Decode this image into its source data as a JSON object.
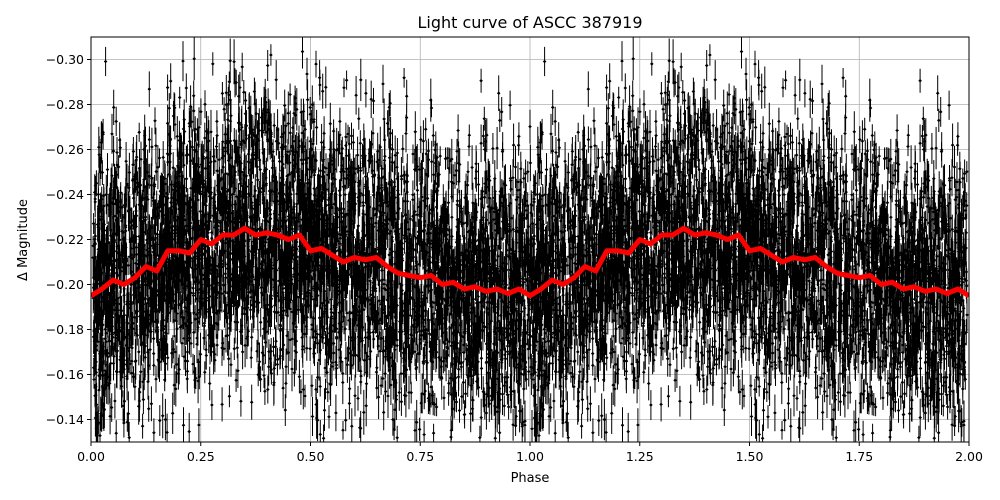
{
  "chart_data": {
    "type": "scatter",
    "title": "Light curve of ASCC 387919",
    "xlabel": "Phase",
    "ylabel": "Δ Magnitude",
    "xlim": [
      0,
      2
    ],
    "ylim": [
      -0.13,
      -0.31
    ],
    "y_inverted": true,
    "grid": true,
    "xticks": [
      "0.00",
      "0.25",
      "0.50",
      "0.75",
      "1.00",
      "1.25",
      "1.50",
      "1.75",
      "2.00"
    ],
    "xtick_values": [
      0,
      0.25,
      0.5,
      0.75,
      1.0,
      1.25,
      1.5,
      1.75,
      2.0
    ],
    "yticks": [
      "−0.30",
      "−0.28",
      "−0.26",
      "−0.24",
      "−0.22",
      "−0.20",
      "−0.18",
      "−0.16",
      "−0.14"
    ],
    "ytick_values": [
      -0.3,
      -0.28,
      -0.26,
      -0.24,
      -0.22,
      -0.2,
      -0.18,
      -0.16,
      -0.14
    ],
    "observations": {
      "style": "errorbar points",
      "color": "#000000",
      "scatter_sd": 0.03
    },
    "binned_curve": {
      "color": "#ff0000",
      "x": [
        0,
        0.025,
        0.05,
        0.075,
        0.1,
        0.125,
        0.15,
        0.175,
        0.2,
        0.225,
        0.25,
        0.275,
        0.3,
        0.325,
        0.35,
        0.375,
        0.4,
        0.425,
        0.45,
        0.475,
        0.5,
        0.525,
        0.55,
        0.575,
        0.6,
        0.625,
        0.65,
        0.675,
        0.7,
        0.725,
        0.75,
        0.775,
        0.8,
        0.825,
        0.85,
        0.875,
        0.9,
        0.925,
        0.95,
        0.975,
        1.0,
        1.025,
        1.05,
        1.075,
        1.1,
        1.125,
        1.15,
        1.175,
        1.2,
        1.225,
        1.25,
        1.275,
        1.3,
        1.325,
        1.35,
        1.375,
        1.4,
        1.425,
        1.45,
        1.475,
        1.5,
        1.525,
        1.55,
        1.575,
        1.6,
        1.625,
        1.65,
        1.675,
        1.7,
        1.725,
        1.75,
        1.775,
        1.8,
        1.825,
        1.85,
        1.875,
        1.9,
        1.925,
        1.95,
        1.975,
        2.0
      ],
      "y": [
        -0.195,
        -0.198,
        -0.202,
        -0.2,
        -0.203,
        -0.208,
        -0.206,
        -0.215,
        -0.215,
        -0.214,
        -0.22,
        -0.218,
        -0.222,
        -0.222,
        -0.225,
        -0.222,
        -0.223,
        -0.222,
        -0.22,
        -0.222,
        -0.215,
        -0.216,
        -0.213,
        -0.21,
        -0.212,
        -0.211,
        -0.212,
        -0.208,
        -0.205,
        -0.204,
        -0.203,
        -0.204,
        -0.2,
        -0.201,
        -0.198,
        -0.199,
        -0.197,
        -0.198,
        -0.196,
        -0.198,
        -0.195,
        -0.198,
        -0.202,
        -0.2,
        -0.203,
        -0.208,
        -0.206,
        -0.215,
        -0.215,
        -0.214,
        -0.22,
        -0.218,
        -0.222,
        -0.222,
        -0.225,
        -0.222,
        -0.223,
        -0.222,
        -0.22,
        -0.222,
        -0.215,
        -0.216,
        -0.213,
        -0.21,
        -0.212,
        -0.211,
        -0.212,
        -0.208,
        -0.205,
        -0.204,
        -0.203,
        -0.204,
        -0.2,
        -0.201,
        -0.198,
        -0.199,
        -0.197,
        -0.198,
        -0.196,
        -0.198,
        -0.195
      ]
    }
  }
}
